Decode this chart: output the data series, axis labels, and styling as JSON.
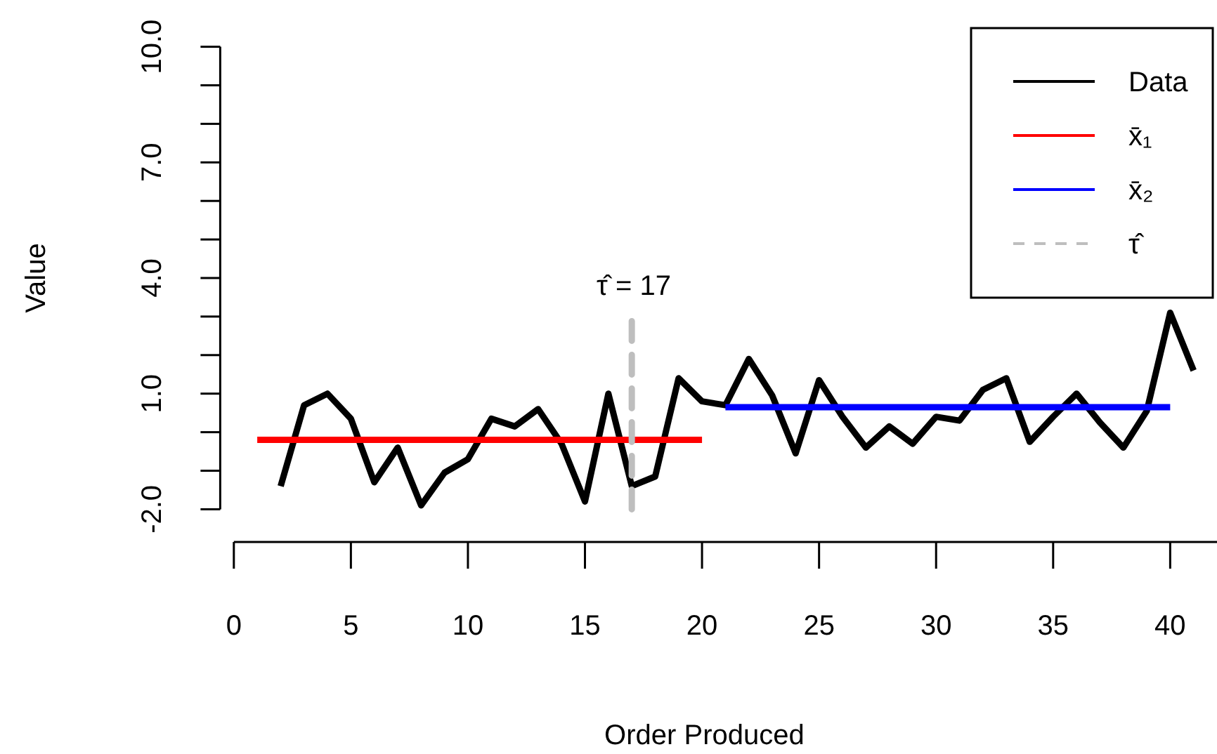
{
  "chart_data": {
    "type": "line",
    "xlabel": "Order Produced",
    "ylabel": "Value",
    "xlim": [
      0,
      42
    ],
    "xticks": [
      0,
      5,
      10,
      15,
      20,
      25,
      30,
      35,
      40
    ],
    "ylim": [
      -2,
      10
    ],
    "yticks": [
      {
        "value": -2,
        "label": "-2.0"
      },
      {
        "value": -1,
        "label": null
      },
      {
        "value": 0,
        "label": null
      },
      {
        "value": 1,
        "label": "1.0"
      },
      {
        "value": 2,
        "label": null
      },
      {
        "value": 3,
        "label": null
      },
      {
        "value": 4,
        "label": "4.0"
      },
      {
        "value": 5,
        "label": null
      },
      {
        "value": 6,
        "label": null
      },
      {
        "value": 7,
        "label": "7.0"
      },
      {
        "value": 8,
        "label": null
      },
      {
        "value": 9,
        "label": null
      },
      {
        "value": 10,
        "label": "10.0"
      }
    ],
    "legend": "top right",
    "annotations": [
      "τ̂ = 17"
    ],
    "series": [
      {
        "name": "Data",
        "color": "#000000",
        "line_style": "solid",
        "x": [
          2,
          3,
          4,
          5,
          6,
          7,
          8,
          9,
          10,
          11,
          12,
          13,
          14,
          15,
          16,
          17,
          18,
          19,
          20,
          21,
          22,
          23,
          24,
          25,
          26,
          27,
          28,
          29,
          30,
          31,
          32,
          33,
          34,
          35,
          36,
          37,
          38,
          39,
          40,
          41
        ],
        "values": [
          -1.4,
          0.7,
          1.0,
          0.35,
          -1.3,
          -0.4,
          -1.9,
          -1.05,
          -0.7,
          0.35,
          0.15,
          0.6,
          -0.3,
          -1.8,
          1.0,
          -1.4,
          -1.15,
          1.4,
          0.8,
          0.7,
          1.9,
          0.95,
          -0.55,
          1.35,
          0.4,
          -0.4,
          0.15,
          -0.3,
          0.4,
          0.3,
          1.1,
          1.4,
          -0.25,
          0.4,
          1.0,
          0.25,
          -0.4,
          0.55,
          3.1,
          1.6
        ]
      },
      {
        "name": "x̄₁",
        "color": "#ff0000",
        "line_style": "solid",
        "x": [
          1,
          20
        ],
        "values": [
          -0.2,
          -0.2
        ]
      },
      {
        "name": "x̄₂",
        "color": "#0000ff",
        "line_style": "solid",
        "x": [
          21,
          40
        ],
        "values": [
          0.65,
          0.65
        ]
      },
      {
        "name": "τ̂",
        "color": "#bebebe",
        "line_style": "dashed",
        "x": [
          17,
          17
        ],
        "values": [
          -2,
          2.9
        ]
      }
    ]
  }
}
